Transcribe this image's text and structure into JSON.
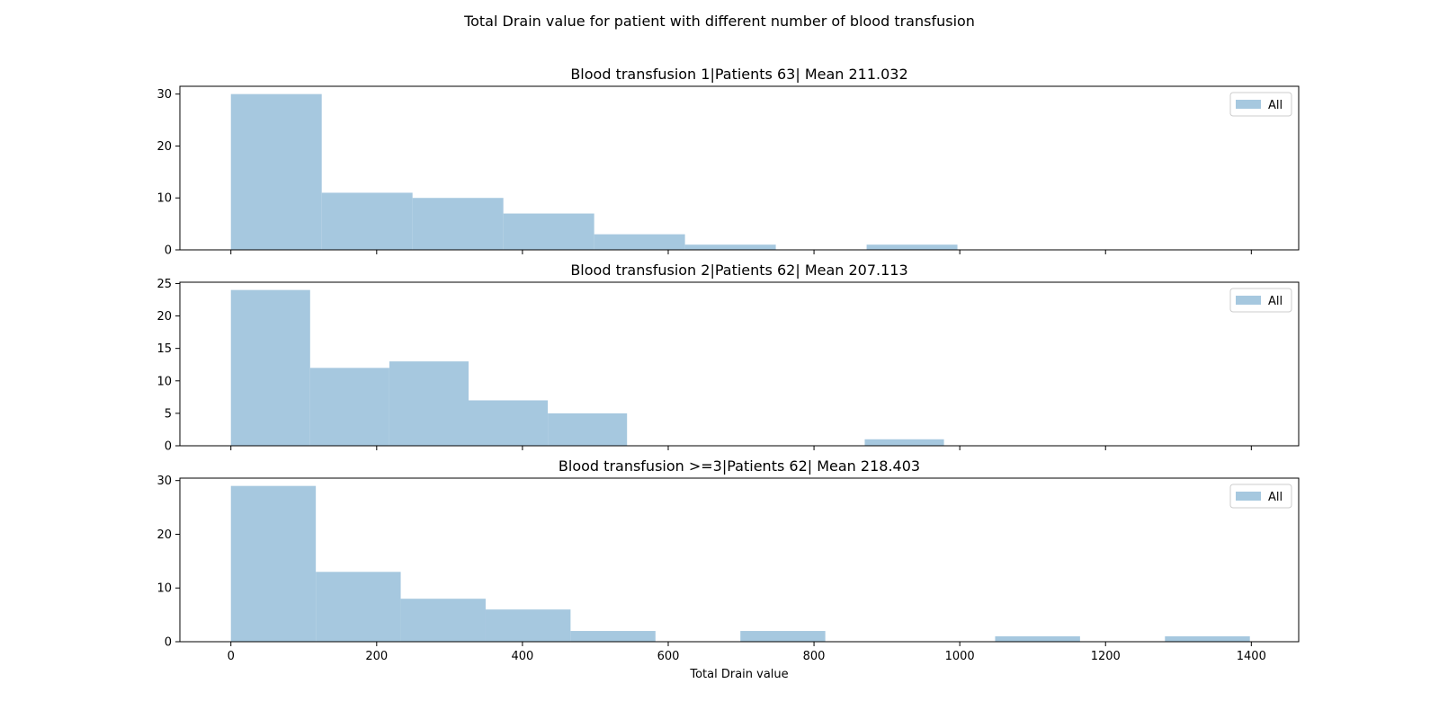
{
  "figure": {
    "suptitle": "Total Drain value for patient with different number of blood transfusion"
  },
  "colors": {
    "bar": "#a6c8df",
    "axis": "#000000",
    "legend_border": "#cccccc"
  },
  "chart_data": [
    {
      "type": "bar",
      "title": "Blood transfusion 1|Patients 63| Mean 211.032",
      "xlabel": "",
      "ylabel": "",
      "xlim": [
        -70,
        1465
      ],
      "ylim": [
        0,
        31.5
      ],
      "x_ticks": [
        0,
        200,
        400,
        600,
        800,
        1000,
        1200,
        1400
      ],
      "x_tick_labels_visible": false,
      "y_ticks": [
        0,
        10,
        20,
        30
      ],
      "legend": [
        "All"
      ],
      "legend_position": "top-right",
      "grid": false,
      "bins": [
        {
          "start": 0,
          "end": 124.6,
          "count": 30
        },
        {
          "start": 124.6,
          "end": 249.2,
          "count": 11
        },
        {
          "start": 249.2,
          "end": 373.8,
          "count": 10
        },
        {
          "start": 373.8,
          "end": 498.4,
          "count": 7
        },
        {
          "start": 498.4,
          "end": 623,
          "count": 3
        },
        {
          "start": 623,
          "end": 747.6,
          "count": 1
        },
        {
          "start": 747.6,
          "end": 872.2,
          "count": 0
        },
        {
          "start": 872.2,
          "end": 996.8,
          "count": 1
        }
      ]
    },
    {
      "type": "bar",
      "title": "Blood transfusion 2|Patients 62| Mean 207.113",
      "xlabel": "",
      "ylabel": "",
      "xlim": [
        -70,
        1465
      ],
      "ylim": [
        0,
        25.2
      ],
      "x_ticks": [
        0,
        200,
        400,
        600,
        800,
        1000,
        1200,
        1400
      ],
      "x_tick_labels_visible": false,
      "y_ticks": [
        0,
        5,
        10,
        15,
        20,
        25
      ],
      "legend": [
        "All"
      ],
      "legend_position": "top-right",
      "grid": false,
      "bins": [
        {
          "start": 0,
          "end": 108.7,
          "count": 24
        },
        {
          "start": 108.7,
          "end": 217.4,
          "count": 12
        },
        {
          "start": 217.4,
          "end": 326.1,
          "count": 13
        },
        {
          "start": 326.1,
          "end": 434.8,
          "count": 7
        },
        {
          "start": 434.8,
          "end": 543.5,
          "count": 5
        },
        {
          "start": 543.5,
          "end": 652.2,
          "count": 0
        },
        {
          "start": 652.2,
          "end": 760.9,
          "count": 0
        },
        {
          "start": 760.9,
          "end": 869.6,
          "count": 0
        },
        {
          "start": 869.6,
          "end": 978.3,
          "count": 1
        }
      ]
    },
    {
      "type": "bar",
      "title": "Blood transfusion >=3|Patients 62| Mean 218.403",
      "xlabel": "Total Drain value",
      "ylabel": "",
      "xlim": [
        -70,
        1465
      ],
      "ylim": [
        0,
        30.45
      ],
      "x_ticks": [
        0,
        200,
        400,
        600,
        800,
        1000,
        1200,
        1400
      ],
      "x_tick_labels_visible": true,
      "y_ticks": [
        0,
        10,
        20,
        30
      ],
      "legend": [
        "All"
      ],
      "legend_position": "top-right",
      "grid": false,
      "bins": [
        {
          "start": 0,
          "end": 116.5,
          "count": 29
        },
        {
          "start": 116.5,
          "end": 233,
          "count": 13
        },
        {
          "start": 233,
          "end": 349.5,
          "count": 8
        },
        {
          "start": 349.5,
          "end": 466,
          "count": 6
        },
        {
          "start": 466,
          "end": 582.5,
          "count": 2
        },
        {
          "start": 582.5,
          "end": 699,
          "count": 0
        },
        {
          "start": 699,
          "end": 815.5,
          "count": 2
        },
        {
          "start": 815.5,
          "end": 932,
          "count": 0
        },
        {
          "start": 932,
          "end": 1048.5,
          "count": 0
        },
        {
          "start": 1048.5,
          "end": 1165,
          "count": 1
        },
        {
          "start": 1165,
          "end": 1281.5,
          "count": 0
        },
        {
          "start": 1281.5,
          "end": 1398,
          "count": 1
        }
      ]
    }
  ]
}
